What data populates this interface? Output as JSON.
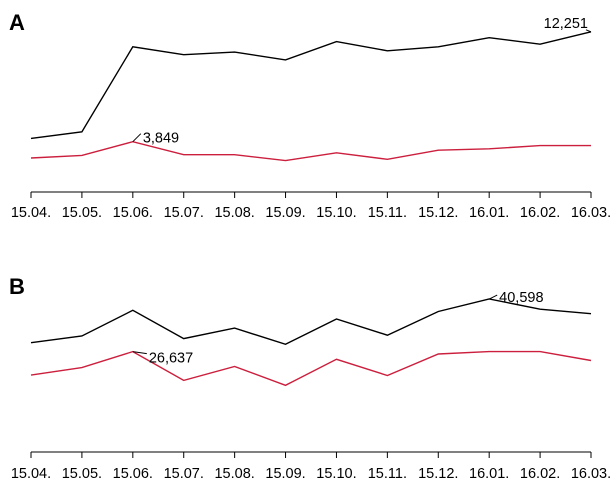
{
  "chart_data": [
    {
      "type": "line",
      "panel_label": "A",
      "categories": [
        "15.04.",
        "15.05.",
        "15.06.",
        "15.07.",
        "15.08.",
        "15.09.",
        "15.10.",
        "15.11.",
        "15.12.",
        "16.01.",
        "16.02.",
        "16.03."
      ],
      "ylim": [
        0,
        13000
      ],
      "grid": false,
      "series": [
        {
          "color": "#000000",
          "values": [
            4100,
            4600,
            11100,
            10500,
            10700,
            10100,
            11500,
            10800,
            11100,
            11800,
            11300,
            12251
          ]
        },
        {
          "color": "#cc1f3d",
          "values": [
            2600,
            2800,
            3849,
            2850,
            2850,
            2400,
            3000,
            2500,
            3200,
            3300,
            3550,
            3550
          ]
        }
      ],
      "annotations": [
        {
          "text": "12,251",
          "series": 0,
          "index": 11
        },
        {
          "text": "3,849",
          "series": 1,
          "index": 2
        }
      ]
    },
    {
      "type": "line",
      "panel_label": "B",
      "categories": [
        "15.04.",
        "15.05.",
        "15.06.",
        "15.07.",
        "15.08.",
        "15.09.",
        "15.10.",
        "15.11.",
        "15.12.",
        "16.01.",
        "16.02.",
        "16.03."
      ],
      "ylim": [
        0,
        43000
      ],
      "grid": false,
      "series": [
        {
          "color": "#000000",
          "values": [
            29000,
            30800,
            37600,
            30100,
            32900,
            28600,
            35300,
            31000,
            37300,
            40598,
            37900,
            36700
          ]
        },
        {
          "color": "#cc1f3d",
          "values": [
            20400,
            22400,
            26637,
            19000,
            22700,
            17700,
            24600,
            20300,
            26000,
            26637,
            26637,
            24300
          ]
        }
      ],
      "annotations": [
        {
          "text": "40,598",
          "series": 0,
          "index": 9
        },
        {
          "text": "26,637",
          "series": 1,
          "index": 2
        }
      ]
    }
  ]
}
